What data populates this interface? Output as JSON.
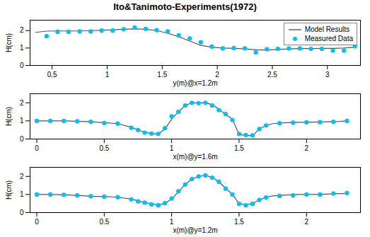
{
  "title": "Ito&Tanimoto-Experiments(1972)",
  "chart_data": [
    {
      "type": "line",
      "xlabel": "y(m)@x=1.2m",
      "ylabel": "H(cm)",
      "xlim": [
        0.3,
        3.3
      ],
      "ylim": [
        0,
        2.6
      ],
      "xticks": [
        0.5,
        1.0,
        1.5,
        2.0,
        2.5,
        3.0
      ],
      "yticks": [
        0,
        1,
        2
      ],
      "legend": "upper right",
      "series": [
        {
          "name": "Model Results",
          "type": "line",
          "color": "#555555",
          "x": [
            0.35,
            0.45,
            0.55,
            0.65,
            0.75,
            0.85,
            0.95,
            1.05,
            1.15,
            1.25,
            1.35,
            1.45,
            1.55,
            1.65,
            1.75,
            1.85,
            1.95,
            2.05,
            2.15,
            2.25,
            2.35,
            2.45,
            2.55,
            2.65,
            2.75,
            2.85,
            2.95,
            3.05,
            3.15,
            3.25
          ],
          "values": [
            1.9,
            1.97,
            1.98,
            1.98,
            1.98,
            2.0,
            2.02,
            2.05,
            2.08,
            2.1,
            2.08,
            2.0,
            1.85,
            1.65,
            1.4,
            1.15,
            1.05,
            1.0,
            0.98,
            0.95,
            0.9,
            0.88,
            0.92,
            0.95,
            0.97,
            0.97,
            0.98,
            0.98,
            1.0,
            1.05
          ]
        },
        {
          "name": "Measured Data",
          "type": "scatter",
          "marker": "circle",
          "color": "#00BFFF",
          "x": [
            0.45,
            0.55,
            0.65,
            0.75,
            0.85,
            0.95,
            1.05,
            1.15,
            1.25,
            1.35,
            1.45,
            1.55,
            1.65,
            1.75,
            1.85,
            1.95,
            2.05,
            2.15,
            2.25,
            2.35,
            2.45,
            2.55,
            2.65,
            2.75,
            2.85,
            2.95,
            3.05,
            3.15,
            3.25
          ],
          "values": [
            1.68,
            1.93,
            1.93,
            1.95,
            1.95,
            2.0,
            2.0,
            2.08,
            2.18,
            2.1,
            2.03,
            1.95,
            1.73,
            1.55,
            1.33,
            1.08,
            0.98,
            1.0,
            0.98,
            0.75,
            0.93,
            0.95,
            0.98,
            0.98,
            0.95,
            0.95,
            0.85,
            0.85,
            1.1
          ]
        }
      ]
    },
    {
      "type": "line",
      "xlabel": "x(m)@y=1.6m",
      "ylabel": "H(cm)",
      "xlim": [
        -0.05,
        2.4
      ],
      "ylim": [
        0,
        2.5
      ],
      "xticks": [
        0,
        0.5,
        1.0,
        1.5,
        2.0
      ],
      "yticks": [
        0,
        1,
        2
      ],
      "series": [
        {
          "type": "line",
          "color": "#555555",
          "x": [
            0.0,
            0.1,
            0.2,
            0.3,
            0.4,
            0.5,
            0.6,
            0.7,
            0.75,
            0.8,
            0.85,
            0.9,
            0.95,
            1.0,
            1.05,
            1.1,
            1.15,
            1.2,
            1.25,
            1.3,
            1.35,
            1.4,
            1.45,
            1.5,
            1.55,
            1.6,
            1.65,
            1.7,
            1.75,
            1.85,
            1.95,
            2.05,
            2.15,
            2.25,
            2.3
          ],
          "values": [
            1.0,
            1.0,
            1.0,
            0.98,
            0.95,
            0.9,
            0.85,
            0.65,
            0.5,
            0.38,
            0.3,
            0.28,
            0.55,
            1.1,
            1.5,
            1.85,
            2.0,
            2.0,
            2.0,
            1.9,
            1.65,
            1.35,
            1.1,
            0.25,
            0.2,
            0.18,
            0.55,
            0.75,
            0.85,
            0.9,
            0.92,
            0.93,
            0.95,
            0.97,
            1.0
          ]
        },
        {
          "type": "scatter",
          "marker": "circle",
          "color": "#00BFFF",
          "x": [
            0.0,
            0.1,
            0.2,
            0.3,
            0.4,
            0.5,
            0.6,
            0.7,
            0.75,
            0.8,
            0.85,
            0.9,
            0.95,
            1.0,
            1.05,
            1.1,
            1.15,
            1.2,
            1.25,
            1.3,
            1.35,
            1.4,
            1.45,
            1.5,
            1.55,
            1.6,
            1.65,
            1.7,
            1.8,
            1.9,
            2.0,
            2.1,
            2.2,
            2.3
          ],
          "values": [
            1.0,
            1.0,
            1.0,
            0.98,
            0.95,
            0.88,
            0.85,
            0.62,
            0.5,
            0.35,
            0.3,
            0.28,
            0.6,
            1.25,
            1.5,
            1.85,
            2.0,
            1.98,
            2.0,
            1.85,
            1.6,
            1.38,
            1.05,
            0.28,
            0.22,
            0.2,
            0.55,
            0.75,
            0.87,
            0.9,
            0.92,
            0.93,
            0.95,
            1.0
          ]
        }
      ]
    },
    {
      "type": "line",
      "xlabel": "x(m)@y=1.2m",
      "ylabel": "H(cm)",
      "xlim": [
        -0.05,
        2.4
      ],
      "ylim": [
        0,
        2.5
      ],
      "xticks": [
        0,
        0.5,
        1.0,
        1.5,
        2.0
      ],
      "yticks": [
        0,
        1,
        2
      ],
      "series": [
        {
          "type": "line",
          "color": "#555555",
          "x": [
            0.0,
            0.1,
            0.2,
            0.3,
            0.4,
            0.5,
            0.6,
            0.7,
            0.75,
            0.8,
            0.85,
            0.9,
            0.95,
            1.0,
            1.05,
            1.1,
            1.15,
            1.2,
            1.25,
            1.3,
            1.35,
            1.4,
            1.45,
            1.5,
            1.55,
            1.6,
            1.65,
            1.7,
            1.75,
            1.85,
            1.95,
            2.05,
            2.15,
            2.25,
            2.3
          ],
          "values": [
            1.0,
            1.0,
            0.98,
            0.95,
            0.9,
            0.88,
            0.85,
            0.75,
            0.65,
            0.55,
            0.48,
            0.42,
            0.5,
            0.75,
            1.15,
            1.55,
            1.85,
            2.0,
            2.05,
            1.95,
            1.7,
            1.35,
            1.0,
            0.5,
            0.42,
            0.5,
            0.7,
            0.85,
            0.92,
            0.97,
            1.0,
            1.0,
            1.02,
            1.05,
            1.05
          ]
        },
        {
          "type": "scatter",
          "marker": "circle",
          "color": "#00BFFF",
          "x": [
            0.0,
            0.1,
            0.2,
            0.3,
            0.4,
            0.5,
            0.6,
            0.7,
            0.75,
            0.8,
            0.85,
            0.9,
            0.95,
            1.0,
            1.05,
            1.1,
            1.15,
            1.2,
            1.25,
            1.3,
            1.35,
            1.4,
            1.45,
            1.5,
            1.55,
            1.6,
            1.65,
            1.7,
            1.8,
            1.9,
            2.0,
            2.1,
            2.2,
            2.3
          ],
          "values": [
            1.0,
            1.0,
            0.98,
            0.95,
            0.9,
            0.88,
            0.85,
            0.73,
            0.62,
            0.55,
            0.45,
            0.4,
            0.52,
            0.78,
            1.18,
            1.55,
            1.85,
            2.0,
            2.05,
            1.93,
            1.7,
            1.32,
            1.0,
            0.48,
            0.4,
            0.48,
            0.7,
            0.83,
            0.92,
            0.95,
            1.0,
            1.0,
            1.05,
            1.08
          ]
        }
      ]
    }
  ]
}
